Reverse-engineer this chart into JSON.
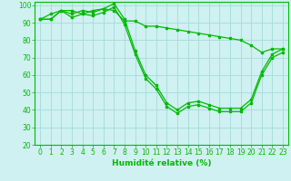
{
  "xlabel": "Humidité relative (%)",
  "xlim": [
    -0.5,
    23.5
  ],
  "ylim": [
    20,
    102
  ],
  "yticks": [
    20,
    30,
    40,
    50,
    60,
    70,
    80,
    90,
    100
  ],
  "xticks": [
    0,
    1,
    2,
    3,
    4,
    5,
    6,
    7,
    8,
    9,
    10,
    11,
    12,
    13,
    14,
    15,
    16,
    17,
    18,
    19,
    20,
    21,
    22,
    23
  ],
  "background_color": "#cff1f1",
  "grid_color": "#aadddd",
  "line_color": "#00bb00",
  "series": [
    [
      92,
      95,
      97,
      97,
      95,
      97,
      98,
      97,
      91,
      91,
      88,
      88,
      87,
      86,
      85,
      84,
      83,
      82,
      81,
      80,
      77,
      73,
      75,
      75
    ],
    [
      92,
      92,
      97,
      95,
      97,
      96,
      98,
      101,
      92,
      74,
      60,
      54,
      44,
      40,
      44,
      45,
      43,
      41,
      41,
      41,
      46,
      62,
      72,
      75
    ],
    [
      92,
      92,
      97,
      93,
      95,
      94,
      96,
      99,
      89,
      72,
      58,
      52,
      42,
      38,
      42,
      43,
      41,
      39,
      39,
      39,
      44,
      60,
      70,
      73
    ]
  ]
}
